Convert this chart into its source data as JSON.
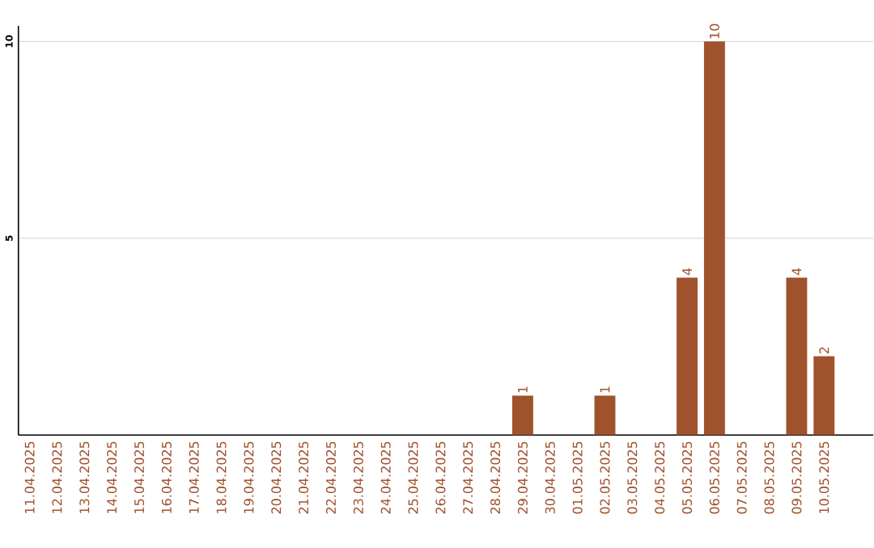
{
  "chart_data": {
    "type": "bar",
    "categories": [
      "11.04.2025",
      "12.04.2025",
      "13.04.2025",
      "14.04.2025",
      "15.04.2025",
      "16.04.2025",
      "17.04.2025",
      "18.04.2025",
      "19.04.2025",
      "20.04.2025",
      "21.04.2025",
      "22.04.2025",
      "23.04.2025",
      "24.04.2025",
      "25.04.2025",
      "26.04.2025",
      "27.04.2025",
      "28.04.2025",
      "29.04.2025",
      "30.04.2025",
      "01.05.2025",
      "02.05.2025",
      "03.05.2025",
      "04.05.2025",
      "05.05.2025",
      "06.05.2025",
      "07.05.2025",
      "08.05.2025",
      "09.05.2025",
      "10.05.2025"
    ],
    "values": [
      0,
      0,
      0,
      0,
      0,
      0,
      0,
      0,
      0,
      0,
      0,
      0,
      0,
      0,
      0,
      0,
      0,
      0,
      1,
      0,
      0,
      1,
      0,
      0,
      4,
      10,
      0,
      0,
      4,
      2
    ],
    "value_labels": [
      null,
      null,
      null,
      null,
      null,
      null,
      null,
      null,
      null,
      null,
      null,
      null,
      null,
      null,
      null,
      null,
      null,
      null,
      "1",
      null,
      null,
      "1",
      null,
      null,
      "4",
      "10",
      null,
      null,
      "4",
      "2"
    ],
    "color": "#a0522d",
    "ylim": [
      0,
      10.4
    ],
    "yticks": [
      5,
      10
    ],
    "grid": "y"
  }
}
